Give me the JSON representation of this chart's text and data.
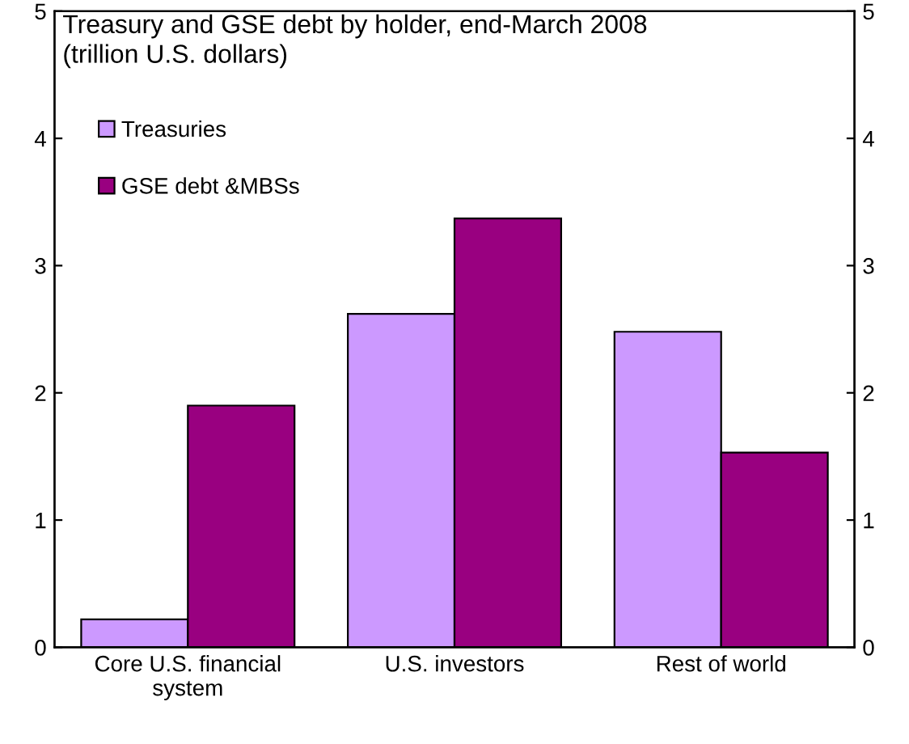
{
  "chart_data": {
    "type": "bar",
    "title": "Treasury and GSE debt by holder, end-March 2008\n(trillion U.S. dollars)",
    "categories": [
      "Core U.S. financial\nsystem",
      "U.S. investors",
      "Rest of world"
    ],
    "series": [
      {
        "name": "Treasuries",
        "color": "#cc99ff",
        "values": [
          0.22,
          2.62,
          2.48
        ]
      },
      {
        "name": "GSE debt &MBSs",
        "color": "#990080",
        "values": [
          1.9,
          3.37,
          1.53
        ]
      }
    ],
    "ylim": [
      0,
      5
    ],
    "yticks": [
      0,
      1,
      2,
      3,
      4,
      5
    ],
    "y2lim": [
      0,
      5
    ],
    "y2ticks": [
      0,
      1,
      2,
      3,
      4,
      5
    ],
    "grid": false,
    "legend": "top left"
  }
}
